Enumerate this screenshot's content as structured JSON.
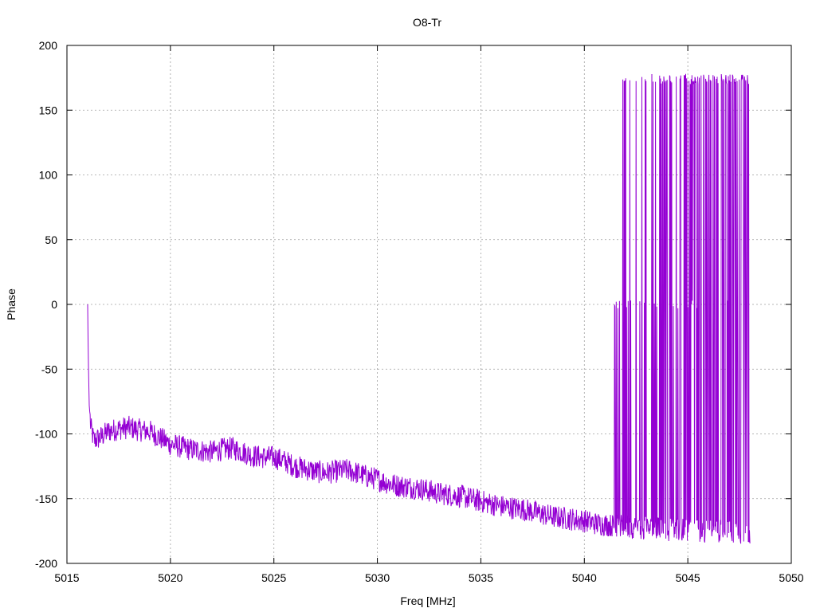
{
  "chart_data": {
    "type": "line",
    "title": "O8-Tr",
    "xlabel": "Freq [MHz]",
    "ylabel": "Phase",
    "xlim": [
      5015,
      5050
    ],
    "ylim": [
      -200,
      200
    ],
    "xticks": [
      5015,
      5020,
      5025,
      5030,
      5035,
      5040,
      5045,
      5050
    ],
    "yticks": [
      -200,
      -150,
      -100,
      -50,
      0,
      50,
      100,
      150,
      200
    ],
    "grid": true,
    "line_color": "#9400d3",
    "series": [
      {
        "values_note": "",
        "x_start": 5016.0,
        "x_end": 5048.0,
        "x_step": 0.02,
        "trend_points": [
          [
            5016.0,
            0
          ],
          [
            5016.03,
            -40
          ],
          [
            5016.08,
            -78
          ],
          [
            5016.15,
            -95
          ],
          [
            5016.3,
            -105
          ],
          [
            5016.6,
            -103
          ],
          [
            5017.0,
            -98
          ],
          [
            5017.5,
            -96
          ],
          [
            5018.0,
            -95
          ],
          [
            5018.5,
            -97
          ],
          [
            5019.0,
            -98
          ],
          [
            5019.5,
            -103
          ],
          [
            5020.0,
            -108
          ],
          [
            5020.5,
            -110
          ],
          [
            5021.0,
            -112
          ],
          [
            5021.5,
            -113
          ],
          [
            5022.0,
            -114
          ],
          [
            5022.5,
            -112
          ],
          [
            5023.0,
            -111
          ],
          [
            5023.5,
            -114
          ],
          [
            5024.0,
            -117
          ],
          [
            5024.5,
            -118
          ],
          [
            5025.0,
            -118
          ],
          [
            5025.5,
            -121
          ],
          [
            5026.0,
            -125
          ],
          [
            5026.5,
            -127
          ],
          [
            5027.0,
            -129
          ],
          [
            5027.5,
            -130
          ],
          [
            5028.0,
            -129
          ],
          [
            5028.5,
            -128
          ],
          [
            5029.0,
            -130
          ],
          [
            5029.5,
            -133
          ],
          [
            5030.0,
            -135
          ],
          [
            5030.5,
            -138
          ],
          [
            5031.0,
            -140
          ],
          [
            5031.5,
            -141
          ],
          [
            5032.0,
            -142
          ],
          [
            5032.5,
            -144
          ],
          [
            5033.0,
            -146
          ],
          [
            5033.5,
            -147
          ],
          [
            5034.0,
            -148
          ],
          [
            5034.5,
            -150
          ],
          [
            5035.0,
            -152
          ],
          [
            5035.5,
            -154
          ],
          [
            5036.0,
            -156
          ],
          [
            5036.5,
            -157
          ],
          [
            5037.0,
            -158
          ],
          [
            5037.5,
            -160
          ],
          [
            5038.0,
            -162
          ],
          [
            5038.5,
            -164
          ],
          [
            5039.0,
            -165
          ],
          [
            5039.5,
            -166
          ],
          [
            5040.0,
            -167
          ],
          [
            5040.5,
            -169
          ],
          [
            5041.0,
            -170
          ],
          [
            5041.5,
            -171
          ],
          [
            5042.0,
            -172
          ],
          [
            5042.5,
            -172
          ],
          [
            5043.0,
            -173
          ],
          [
            5043.5,
            -173
          ],
          [
            5044.0,
            -174
          ],
          [
            5044.5,
            -174
          ],
          [
            5045.0,
            -174
          ],
          [
            5045.5,
            -175
          ],
          [
            5046.0,
            -175
          ],
          [
            5046.5,
            -175
          ],
          [
            5047.0,
            -175
          ],
          [
            5047.5,
            -176
          ],
          [
            5048.0,
            -176
          ]
        ],
        "wrap_start": 5041.4,
        "wrap_end": 5048.0,
        "wrap_upper": 178,
        "noise_amplitude": 9
      }
    ]
  }
}
